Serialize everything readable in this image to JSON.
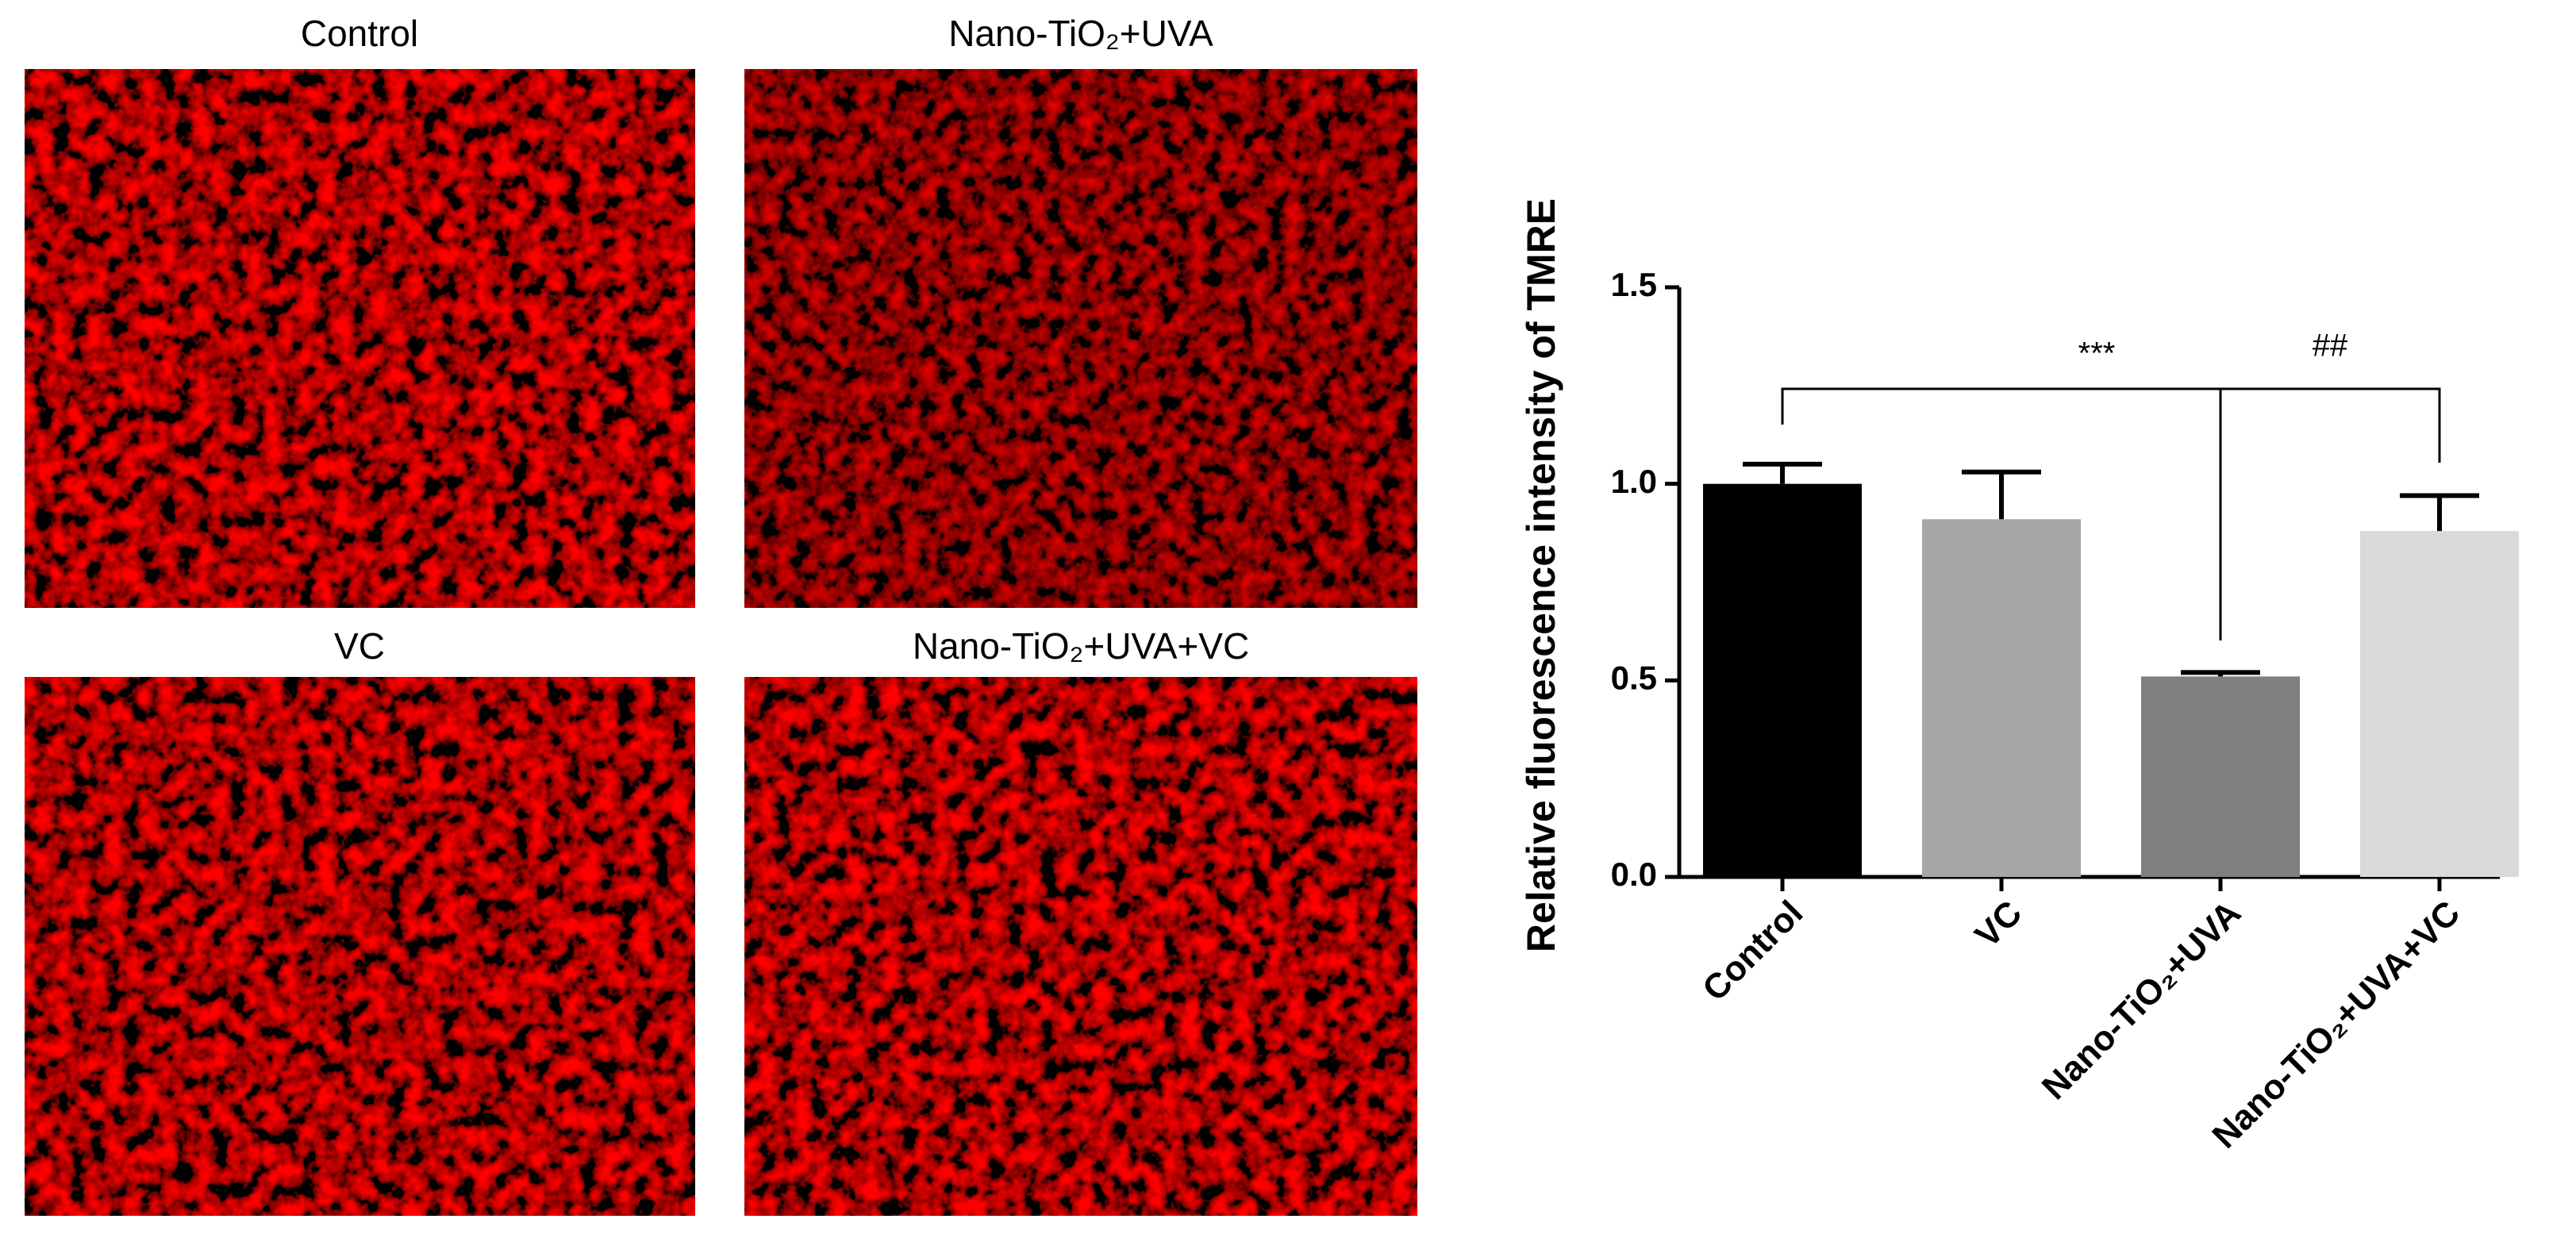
{
  "panels": [
    {
      "label": "Control"
    },
    {
      "label": "Nano-TiO₂+UVA"
    },
    {
      "label": "VC"
    },
    {
      "label": "Nano-TiO₂+UVA+VC"
    }
  ],
  "chart_data": {
    "type": "bar",
    "y_label": "Relative fluorescence intensity of TMRE",
    "categories": [
      "Control",
      "VC",
      "Nano-TiO₂+UVA",
      "Nano-TiO₂+UVA+VC"
    ],
    "values": [
      1.0,
      0.91,
      0.51,
      0.88
    ],
    "errors": [
      0.05,
      0.12,
      0.01,
      0.09
    ],
    "colors": [
      "#000000",
      "#a6a6a6",
      "#7f7f7f",
      "#d9d9d9"
    ],
    "ylim": [
      0,
      1.5
    ],
    "yticks": [
      {
        "value": 0,
        "label": "0.0"
      },
      0.5,
      {
        "value": 1,
        "label": "1.0"
      },
      1.5
    ],
    "annotations": [
      "***",
      "##"
    ]
  }
}
